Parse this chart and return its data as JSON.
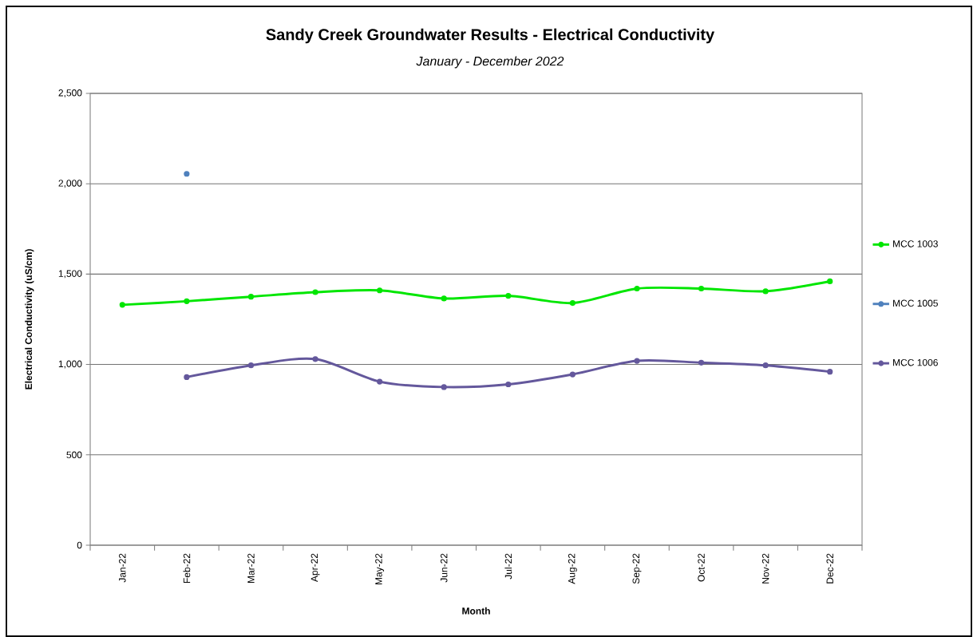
{
  "chart_data": {
    "type": "line",
    "title": "Sandy Creek Groundwater Results - Electrical Conductivity",
    "subtitle": "January - December 2022",
    "xlabel": "Month",
    "ylabel": "Electrical Conductivity (uS/cm)",
    "categories": [
      "Jan-22",
      "Feb-22",
      "Mar-22",
      "Apr-22",
      "May-22",
      "Jun-22",
      "Jul-22",
      "Aug-22",
      "Sep-22",
      "Oct-22",
      "Nov-22",
      "Dec-22"
    ],
    "series": [
      {
        "name": "MCC 1003",
        "color": "#00e600",
        "values": [
          1330,
          1350,
          1375,
          1400,
          1410,
          1365,
          1380,
          1340,
          1420,
          1420,
          1405,
          1460
        ]
      },
      {
        "name": "MCC 1005",
        "color": "#4f81bd",
        "values": [
          null,
          2055,
          null,
          null,
          null,
          null,
          null,
          null,
          null,
          null,
          null,
          null
        ]
      },
      {
        "name": "MCC 1006",
        "color": "#64589c",
        "values": [
          null,
          930,
          995,
          1030,
          905,
          875,
          890,
          945,
          1020,
          1010,
          995,
          960
        ]
      }
    ],
    "ylim": [
      0,
      2500
    ],
    "yticks": [
      0,
      500,
      {
        "value": 1000,
        "label": "1,000"
      },
      {
        "value": 1500,
        "label": "1,500"
      },
      {
        "value": 2000,
        "label": "2,000"
      },
      {
        "value": 2500,
        "label": "2,500"
      }
    ],
    "grid": "y",
    "legend": "right",
    "marker": "circle"
  }
}
